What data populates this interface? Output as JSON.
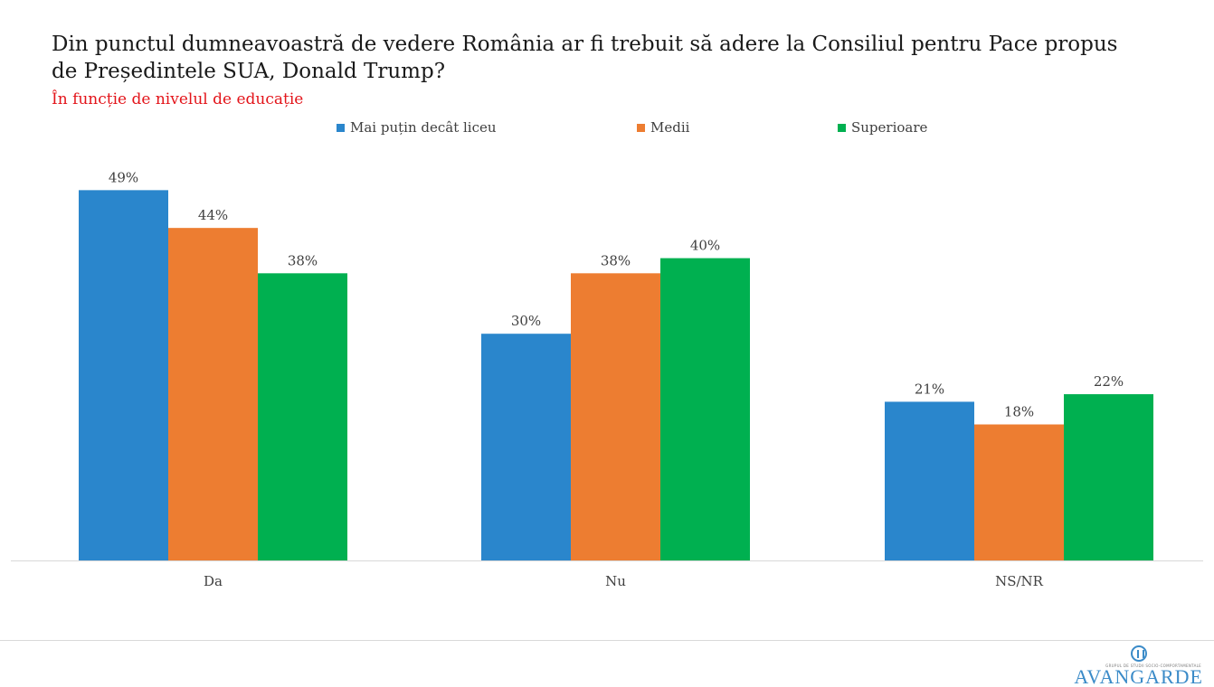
{
  "chart_data": {
    "type": "bar",
    "title": "Din punctul dumneavoastră de vedere România ar fi trebuit să adere la Consiliul pentru Pace propus de Președintele SUA, Donald Trump?",
    "subtitle": "În funcție de nivelul de educație",
    "categories": [
      "Da",
      "Nu",
      "NS/NR"
    ],
    "series": [
      {
        "name": "Mai puțin decât liceu",
        "color": "#2a86cc",
        "values": [
          49,
          30,
          21
        ]
      },
      {
        "name": "Medii",
        "color": "#ed7d31",
        "values": [
          44,
          38,
          18
        ]
      },
      {
        "name": "Superioare",
        "color": "#00b050",
        "values": [
          38,
          40,
          22
        ]
      }
    ],
    "value_suffix": "%",
    "ylim": [
      0,
      55
    ],
    "grid": false,
    "legend_position": "top-center"
  },
  "logo": {
    "name": "AVANGARDE",
    "tagline": "GRUPUL DE STUDII SOCIO-COMPORTAMENTALE"
  },
  "colors": {
    "title": "#1a1a1a",
    "subtitle": "#e3141a",
    "axis": "#d9d9d9",
    "labels": "#404040",
    "brand": "#3b8bc8"
  }
}
